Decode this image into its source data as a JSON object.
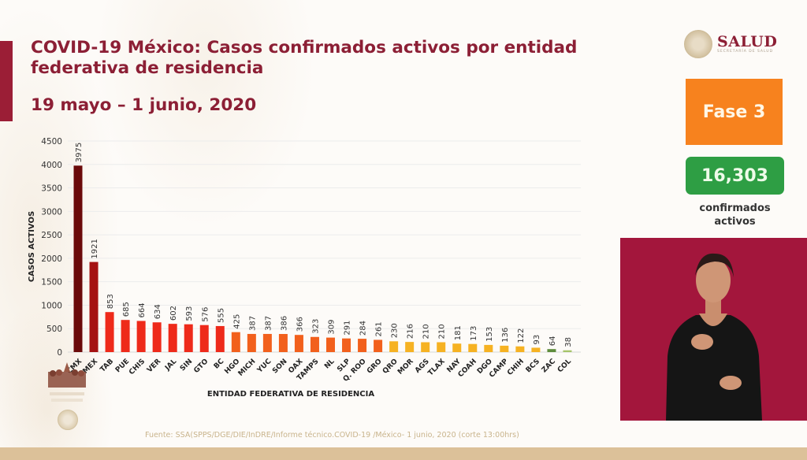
{
  "header": {
    "title": "COVID-19 México: Casos confirmados activos por entidad federativa de residencia",
    "date_range": "19 mayo – 1 junio, 2020"
  },
  "logo": {
    "name": "SALUD",
    "subtitle": "SECRETARÍA DE SALUD"
  },
  "phase": {
    "label": "Fase 3",
    "color": "#f7821e"
  },
  "summary": {
    "value": "16,303",
    "label_line1": "confirmados",
    "label_line2": "activos",
    "color": "#2e9e44"
  },
  "footer": {
    "source": "Fuente: SSA(SPPS/DGE/DIE/InDRE/Informe técnico.COVID-19 /México- 1 junio, 2020 (corte 13:00hrs)"
  },
  "video": {
    "description": "Intérprete de lengua de señas"
  },
  "chart_data": {
    "type": "bar",
    "title": "COVID-19 México: Casos confirmados activos por entidad federativa de residencia",
    "xlabel": "ENTIDAD FEDERATIVA DE  RESIDENCIA",
    "ylabel": "CASOS ACTIVOS",
    "ylim": [
      0,
      4500
    ],
    "yticks": [
      0,
      500,
      1000,
      1500,
      2000,
      2500,
      3000,
      3500,
      4000,
      4500
    ],
    "grid": true,
    "legend": "none",
    "categories": [
      "CMX",
      "MEX",
      "TAB",
      "PUE",
      "CHIS",
      "VER",
      "JAL",
      "SIN",
      "GTO",
      "BC",
      "HGO",
      "MICH",
      "YUC",
      "SON",
      "OAX",
      "TAMPS",
      "NL",
      "SLP",
      "Q. ROO",
      "GRO",
      "QRO",
      "MOR",
      "AGS",
      "TLAX",
      "NAY",
      "COAH",
      "DGO",
      "CAMP",
      "CHIH",
      "BCS",
      "ZAC",
      "COL"
    ],
    "values": [
      3975,
      1921,
      853,
      685,
      664,
      634,
      602,
      593,
      576,
      555,
      425,
      387,
      387,
      386,
      366,
      323,
      309,
      291,
      284,
      261,
      230,
      216,
      210,
      210,
      181,
      173,
      153,
      136,
      122,
      93,
      64,
      38
    ],
    "colors": [
      "#6b0a0a",
      "#a51212",
      "#ee2a1a",
      "#ee2a1a",
      "#ee2a1a",
      "#ee2a1a",
      "#ee2a1a",
      "#ee2a1a",
      "#ee2a1a",
      "#ee2a1a",
      "#f2601c",
      "#f2601c",
      "#f2601c",
      "#f2601c",
      "#f2601c",
      "#f2601c",
      "#f2601c",
      "#f2601c",
      "#f2601c",
      "#f2601c",
      "#f6b222",
      "#f6b222",
      "#f6b222",
      "#f6b222",
      "#f6b222",
      "#f6b222",
      "#f6b222",
      "#f6b222",
      "#f6b222",
      "#f6b222",
      "#5e8c3c",
      "#a6c468"
    ]
  }
}
